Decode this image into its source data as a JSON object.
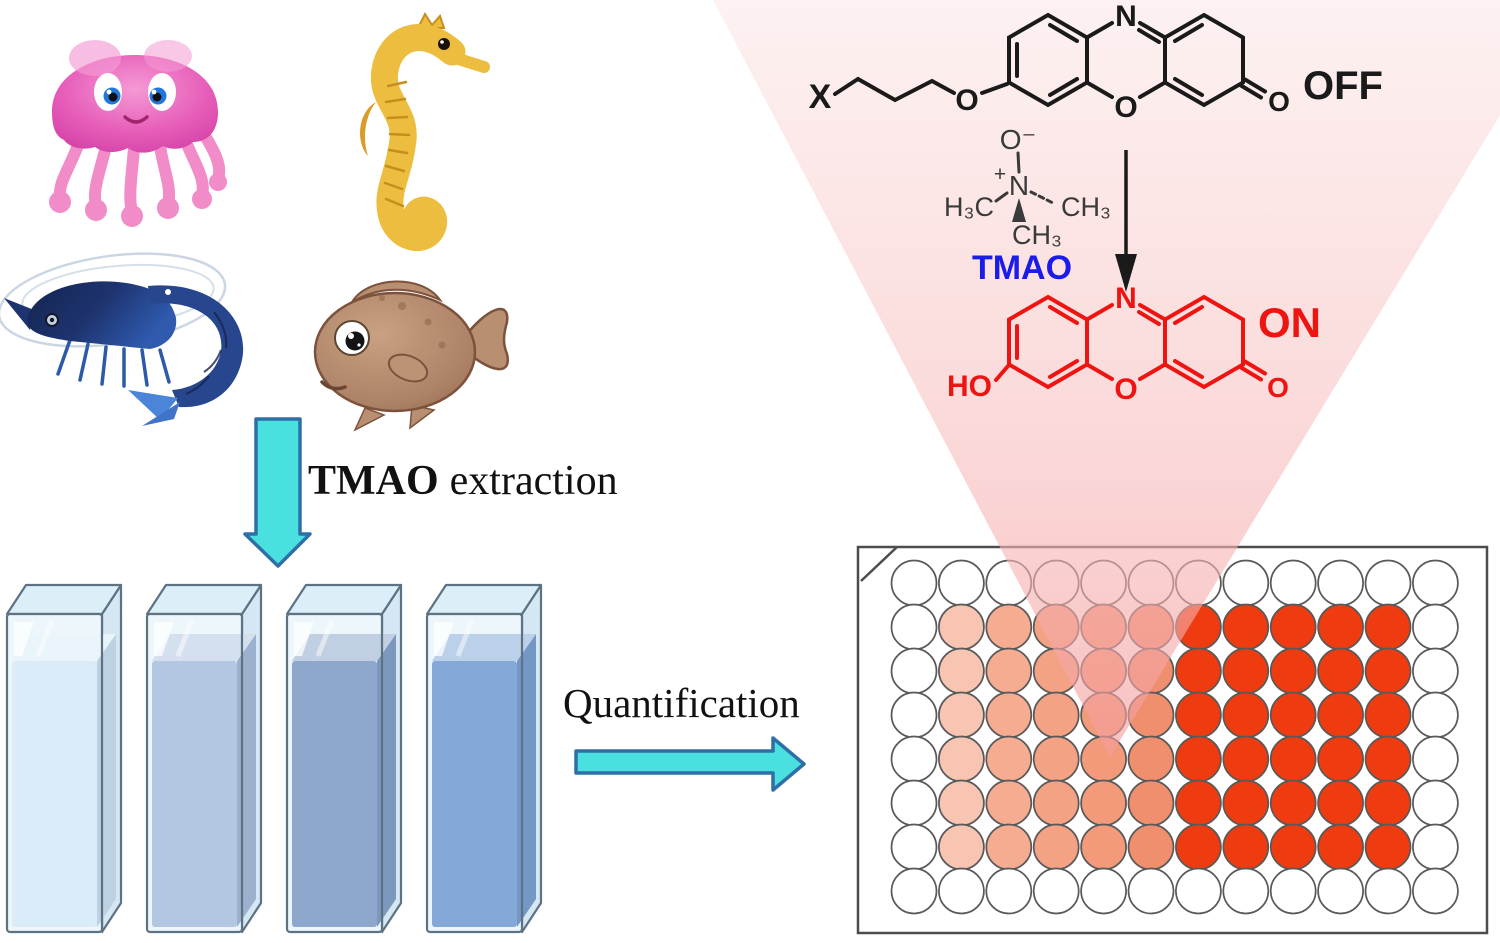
{
  "figure": {
    "description": "Graphical abstract: TMAO extraction from seafood and fluorescent OFF/ON quantification in a 96-well plate",
    "background": "#ffffff"
  },
  "palette": {
    "arrow_fill": "#49E0DF",
    "arrow_stroke": "#2F6FA8",
    "cone_top": "#FCE9E9",
    "cone_mid": "#F8C3C3",
    "cone_bottom": "#F49C9C",
    "probe_off_color": "#1A1A1A",
    "probe_on_color": "#EE1411",
    "tmao_caption_color": "#1C1CE8",
    "tmao_molecule_color": "#3A3A3A",
    "plate_frame_color": "#4D4D4D",
    "well_stroke": "#595959"
  },
  "animals": {
    "jellyfish_color": "#E65CB8",
    "jellyfish_shade": "#D13FA5",
    "jellyfish_tentacle": "#F18CC9",
    "seahorse_color": "#ECBD3E",
    "seahorse_shade": "#C68F1C",
    "shrimp_color": "#1E3470",
    "shrimp_mid": "#2C4F9E",
    "shrimp_fin": "#4B85D8",
    "fish_color": "#AD8166",
    "fish_fin": "#B98F72",
    "fish_outline": "#7C523C"
  },
  "extraction_step": {
    "label_bold": "TMAO",
    "label_rest": "extraction"
  },
  "quantification_step": {
    "label": "Quantification"
  },
  "cuvettes": {
    "count": 4,
    "items": [
      {
        "liquid_color": "#D9ECF8"
      },
      {
        "liquid_color": "#B3C6E2"
      },
      {
        "liquid_color": "#8EA8CD"
      },
      {
        "liquid_color": "#84A9D8"
      }
    ]
  },
  "probe_off": {
    "x": "X",
    "ether_o": "O",
    "n": "N",
    "ring_o": "O",
    "carbonyl_o": "O",
    "state": "OFF"
  },
  "tmao": {
    "o_minus": "O⁻",
    "plus": "+",
    "n": "N",
    "methyl_left": "H₃C",
    "methyl_right": "CH₃",
    "methyl_bottom": "CH₃",
    "caption": "TMAO"
  },
  "probe_on": {
    "ho": "HO",
    "n": "N",
    "ring_o": "O",
    "carbonyl_o": "O",
    "state": "ON"
  },
  "plate": {
    "rows": 8,
    "cols": 12,
    "well_colors": {
      "w": "#FFFFFF",
      "1": "#F8C5B2",
      "2": "#F5AC90",
      "3": "#F3A283",
      "4": "#F29A7A",
      "5": "#F08F6E",
      "6": "#EE3C10"
    },
    "wells": [
      [
        "w",
        "w",
        "w",
        "w",
        "w",
        "w",
        "w",
        "w",
        "w",
        "w",
        "w",
        "w"
      ],
      [
        "w",
        "1",
        "2",
        "3",
        "4",
        "5",
        "6",
        "6",
        "6",
        "6",
        "6",
        "w"
      ],
      [
        "w",
        "1",
        "2",
        "3",
        "4",
        "5",
        "6",
        "6",
        "6",
        "6",
        "6",
        "w"
      ],
      [
        "w",
        "1",
        "2",
        "3",
        "4",
        "5",
        "6",
        "6",
        "6",
        "6",
        "6",
        "w"
      ],
      [
        "w",
        "1",
        "2",
        "3",
        "4",
        "5",
        "6",
        "6",
        "6",
        "6",
        "6",
        "w"
      ],
      [
        "w",
        "1",
        "2",
        "3",
        "4",
        "5",
        "6",
        "6",
        "6",
        "6",
        "6",
        "w"
      ],
      [
        "w",
        "1",
        "2",
        "3",
        "4",
        "5",
        "6",
        "6",
        "6",
        "6",
        "6",
        "w"
      ],
      [
        "w",
        "w",
        "w",
        "w",
        "w",
        "w",
        "w",
        "w",
        "w",
        "w",
        "w",
        "w"
      ]
    ]
  }
}
